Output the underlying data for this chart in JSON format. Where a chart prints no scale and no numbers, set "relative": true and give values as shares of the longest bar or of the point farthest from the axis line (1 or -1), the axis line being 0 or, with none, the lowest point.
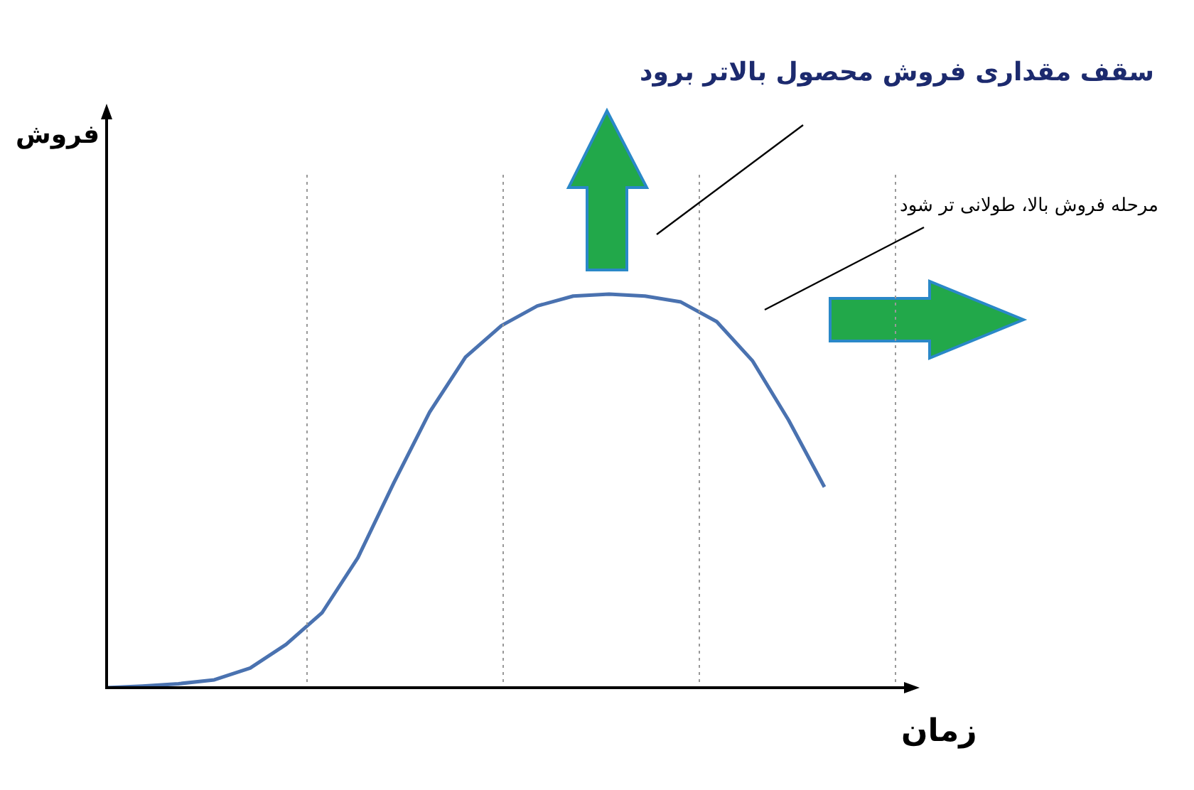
{
  "chart_data": {
    "type": "line",
    "relative": true,
    "xlabel": "زمان",
    "tick_labels": false,
    "legend": false,
    "marker": "none",
    "line_style": "solid",
    "categories": [
      null,
      null,
      null,
      null,
      null,
      null,
      null,
      null,
      null,
      null,
      null,
      null,
      null,
      null,
      null,
      null,
      null,
      null,
      null,
      null,
      null
    ],
    "series": [
      {
        "color": "#4a72b0",
        "values": [
          0,
          0.004,
          0.01,
          0.02,
          0.05,
          0.11,
          0.19,
          0.33,
          0.52,
          0.7,
          0.84,
          0.92,
          0.97,
          0.995,
          1.0,
          0.995,
          0.98,
          0.93,
          0.83,
          0.68,
          0.51
        ]
      }
    ],
    "annotations": [
      "سقف مقداری فروش محصول بالاتر برود",
      "مرحله فروش بالا، طولانی تر شود",
      "فروش"
    ]
  }
}
